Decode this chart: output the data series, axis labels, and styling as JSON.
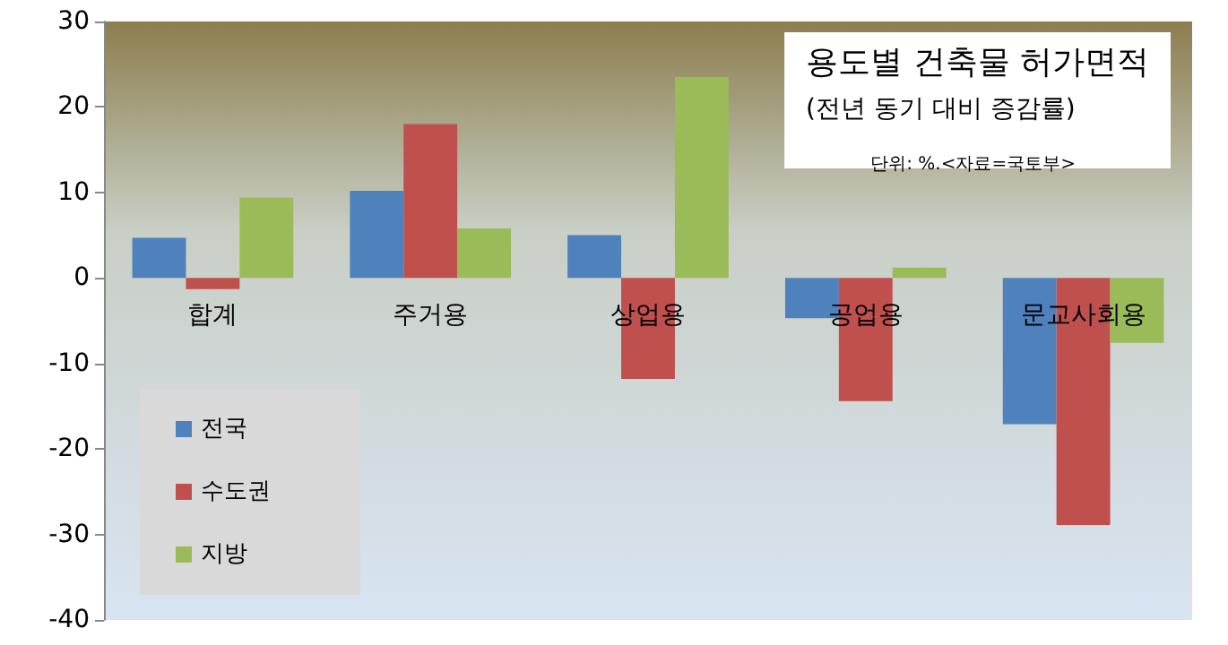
{
  "chart_data": {
    "type": "bar",
    "title": "용도별 건축물 허가면적",
    "subtitle": "(전년 동기 대비 증감률)",
    "annotations": [
      "단위: %.<자료=국토부>"
    ],
    "categories": [
      "합계",
      "주거용",
      "상업용",
      "공업용",
      "문교사회용"
    ],
    "series": [
      {
        "name": "전국",
        "color": "#4f81bd",
        "values": [
          4.7,
          10.2,
          5.0,
          -4.7,
          -17.1
        ]
      },
      {
        "name": "수도권",
        "color": "#c0504d",
        "values": [
          -1.3,
          18.0,
          -11.8,
          -14.4,
          -28.9
        ]
      },
      {
        "name": "지방",
        "color": "#9bbb59",
        "values": [
          9.4,
          5.8,
          23.5,
          1.2,
          -7.6
        ]
      }
    ],
    "ylim": [
      -40,
      30
    ],
    "yticks": [
      -40,
      -30,
      -20,
      -10,
      0,
      10,
      20,
      30
    ],
    "grid": false,
    "legend": "bottom left"
  }
}
